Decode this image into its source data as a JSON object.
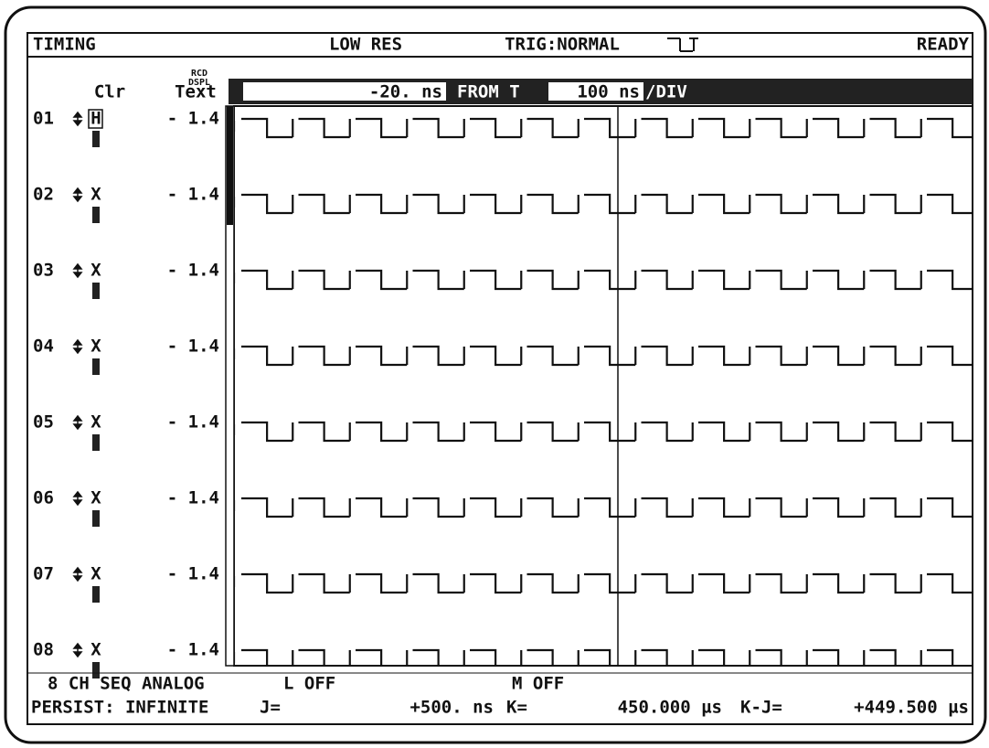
{
  "header": {
    "mode": "TIMING",
    "resolution": "LOW RES",
    "trigger": "TRIG:NORMAL",
    "status": "READY"
  },
  "columns": {
    "rcd": "RCD",
    "dspl": "DSPL",
    "clr": "Clr",
    "text": "Text"
  },
  "toolbar": {
    "offset": "-20. ns",
    "from": "FROM T",
    "scale": "100 ns",
    "per_div": "/DIV"
  },
  "channels": [
    {
      "id": "01",
      "clr": "H",
      "text": "- 1.4"
    },
    {
      "id": "02",
      "clr": "X",
      "text": "- 1.4"
    },
    {
      "id": "03",
      "clr": "X",
      "text": "- 1.4"
    },
    {
      "id": "04",
      "clr": "X",
      "text": "- 1.4"
    },
    {
      "id": "05",
      "clr": "X",
      "text": "- 1.4"
    },
    {
      "id": "06",
      "clr": "X",
      "text": "- 1.4"
    },
    {
      "id": "07",
      "clr": "X",
      "text": "- 1.4"
    },
    {
      "id": "08",
      "clr": "X",
      "text": "- 1.4"
    }
  ],
  "footer": {
    "config": "8 CH SEQ ANALOG",
    "l": "L OFF",
    "m": "M OFF",
    "persist": "PERSIST: INFINITE",
    "j_label": "J=",
    "j_value": "+500. ns",
    "k_label": "K=",
    "k_value": "450.000 µs",
    "kj_label": "K-J=",
    "kj_value": "+449.500 µs"
  }
}
